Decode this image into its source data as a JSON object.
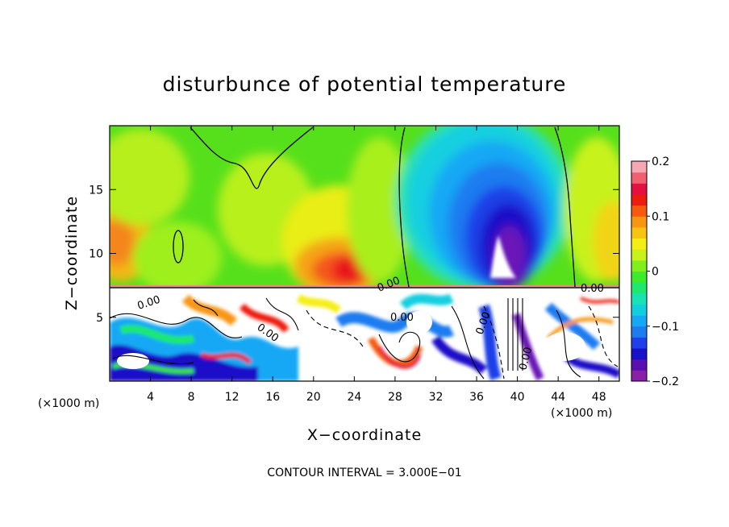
{
  "chart_data": {
    "type": "heatmap",
    "title": "disturbunce of potential temperature",
    "xlabel": "X−coordinate",
    "ylabel": "Z−coordinate",
    "x_unit_left": "(×1000 m)",
    "x_unit_right": "(×1000 m)",
    "xlim": [
      0,
      50
    ],
    "ylim": [
      0,
      20
    ],
    "x_ticks": [
      "4",
      "8",
      "12",
      "16",
      "20",
      "24",
      "28",
      "32",
      "36",
      "40",
      "44",
      "48"
    ],
    "y_ticks": [
      "5",
      "10",
      "15"
    ],
    "colorbar": {
      "range": [
        -0.2,
        0.2
      ],
      "ticks": [
        "0.2",
        "0.1",
        "0",
        "−0.1",
        "−0.2"
      ],
      "colors": [
        "#8a1fa8",
        "#5a0fb0",
        "#1a10c8",
        "#1f3fe8",
        "#1c7cf0",
        "#16a8f5",
        "#12cfe0",
        "#19e3b4",
        "#1fe86e",
        "#3eea2a",
        "#7ff01e",
        "#c8f21a",
        "#f5ee14",
        "#f8c414",
        "#f89612",
        "#f55a10",
        "#ee1c10",
        "#e51040",
        "#f06070",
        "#f8a8b4"
      ]
    },
    "footer": "CONTOUR INTERVAL = 3.000E−01",
    "contour_labels": [
      "0.00",
      "0.00",
      "0.00",
      "0.00",
      "0.00",
      "0.00",
      "0.00"
    ],
    "features": {
      "warm_maximum": {
        "x": 23,
        "z": 9.5,
        "value": 0.12
      },
      "cold_minimum": {
        "x": 38,
        "z": 11,
        "value": -0.2
      },
      "boundary_layer_top_z": 7.3
    }
  }
}
